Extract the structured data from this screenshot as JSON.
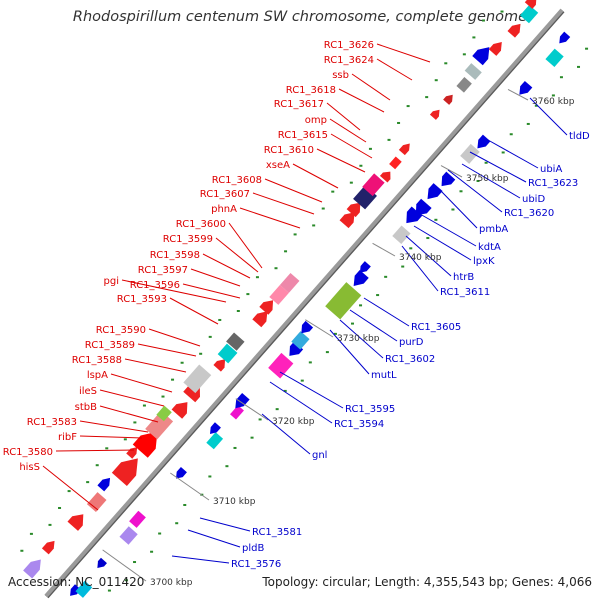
{
  "title": "Rhodospirillum centenum SW chromosome, complete genome",
  "footer": {
    "accession": "Accession: NC_011420",
    "summary": "Topology: circular; Length: 4,355,543 bp; Genes: 4,066"
  },
  "colors": {
    "axis": "#9a9a9a",
    "forward_label": "#dd0000",
    "reverse_label": "#0000cc",
    "tick_dot": "#2a8a2a"
  },
  "ticks": [
    "3700 kbp",
    "3710 kbp",
    "3720 kbp",
    "3730 kbp",
    "3740 kbp",
    "3750 kbp",
    "3760 kbp"
  ],
  "forward_labels": [
    "RC1_3626",
    "RC1_3624",
    "ssb",
    "RC1_3618",
    "RC1_3617",
    "omp",
    "RC1_3615",
    "RC1_3610",
    "xseA",
    "RC1_3608",
    "RC1_3607",
    "phnA",
    "RC1_3600",
    "RC1_3599",
    "RC1_3598",
    "RC1_3597",
    "pgi",
    "RC1_3596",
    "RC1_3593",
    "RC1_3590",
    "RC1_3589",
    "RC1_3588",
    "lspA",
    "ileS",
    "stbB",
    "RC1_3583",
    "ribF",
    "RC1_3580",
    "hisS"
  ],
  "reverse_labels": [
    "tldD",
    "ubiA",
    "RC1_3623",
    "ubiD",
    "RC1_3620",
    "pmbA",
    "kdtA",
    "lpxK",
    "htrB",
    "RC1_3611",
    "RC1_3605",
    "purD",
    "RC1_3602",
    "mutL",
    "RC1_3595",
    "RC1_3594",
    "gnl",
    "RC1_3581",
    "pldB",
    "RC1_3576"
  ]
}
